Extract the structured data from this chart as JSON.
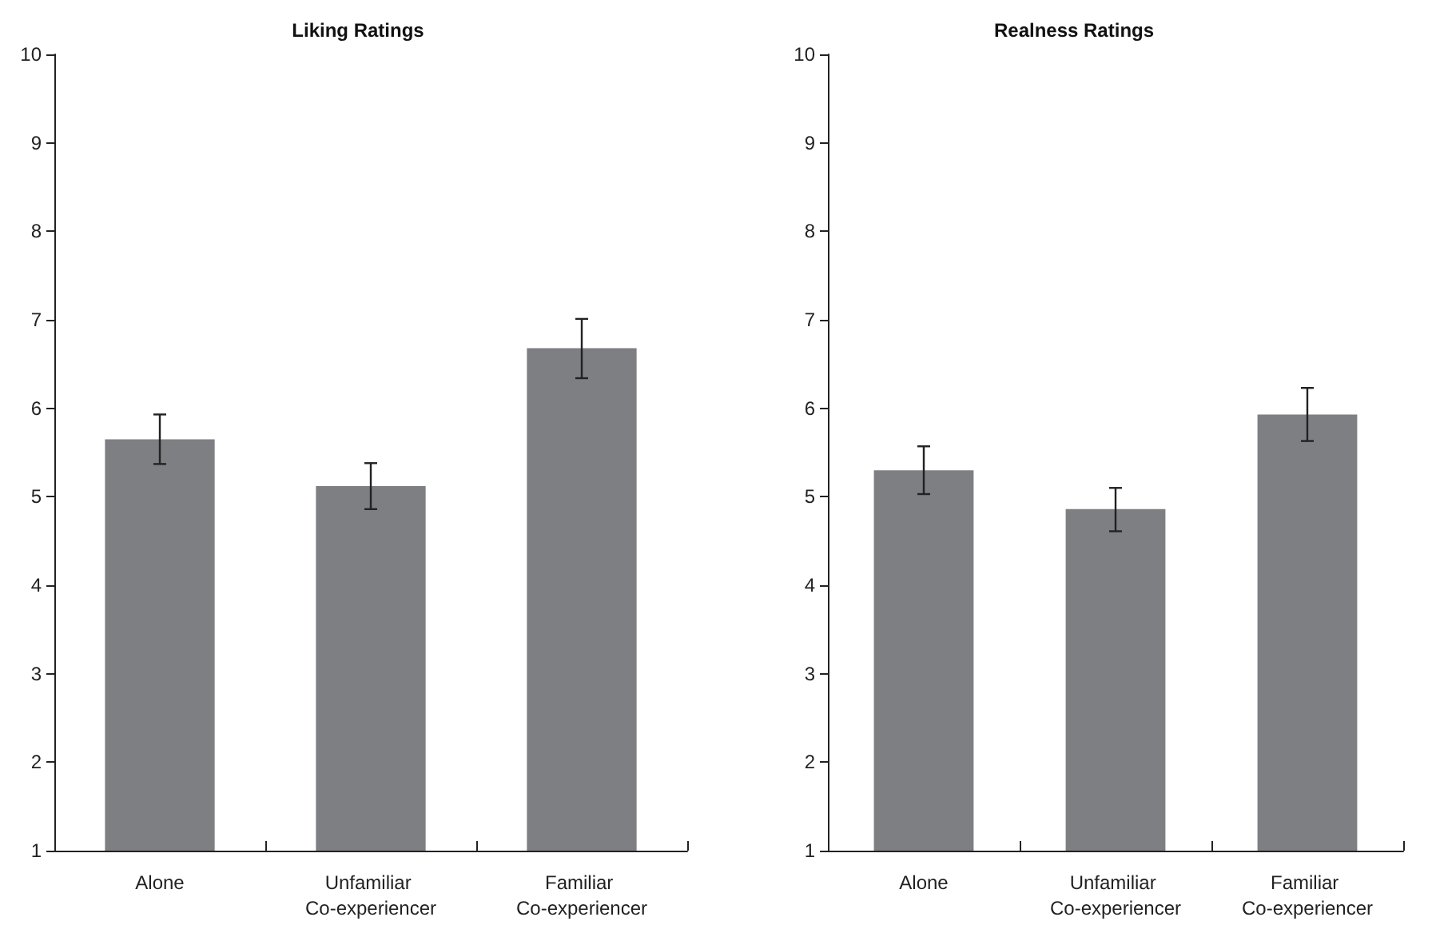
{
  "chart_data": [
    {
      "type": "bar",
      "title": "Liking Ratings",
      "categories": [
        "Alone",
        "Unfamiliar Co-experiencer",
        "Familiar Co-experiencer"
      ],
      "values": [
        5.65,
        5.12,
        6.68
      ],
      "color": "#7e7f83",
      "errors": [
        [
          5.37,
          5.93
        ],
        [
          4.86,
          5.38
        ],
        [
          6.34,
          7.01
        ]
      ],
      "ylim": [
        1,
        10
      ],
      "yticks": [
        1,
        2,
        3,
        4,
        5,
        6,
        7,
        8,
        9,
        10
      ],
      "grid": false
    },
    {
      "type": "bar",
      "title": "Realness Ratings",
      "categories": [
        "Alone",
        "Unfamiliar Co-experiencer",
        "Familiar Co-experiencer"
      ],
      "values": [
        5.3,
        4.86,
        5.93
      ],
      "color": "#7e7f83",
      "errors": [
        [
          5.03,
          5.57
        ],
        [
          4.61,
          5.1
        ],
        [
          5.63,
          6.23
        ]
      ],
      "ylim": [
        1,
        10
      ],
      "yticks": [
        1,
        2,
        3,
        4,
        5,
        6,
        7,
        8,
        9,
        10
      ],
      "grid": false
    }
  ]
}
